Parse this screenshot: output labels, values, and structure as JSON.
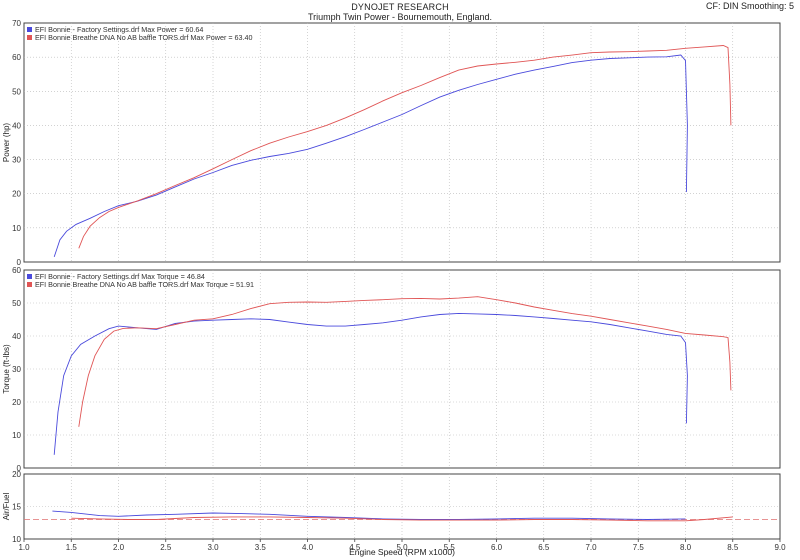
{
  "header": {
    "title": "DYNOJET RESEARCH",
    "subtitle": "Triumph Twin Power - Bournemouth, England.",
    "right_info": "CF: DIN  Smoothing: 5"
  },
  "colors": {
    "series1": "#4a4adc",
    "series2": "#e05555",
    "grid": "#b8b8b8",
    "frame": "#444444",
    "background": "#ffffff"
  },
  "chart_data": [
    {
      "type": "line",
      "ylabel": "Power (hp)",
      "ylim": [
        0,
        70
      ],
      "yticks": [
        0,
        10,
        20,
        30,
        40,
        50,
        60,
        70
      ],
      "xlim": [
        1.0,
        9.0
      ],
      "grid": true,
      "legend_position": "top-left",
      "series": [
        {
          "name": "EFI Bonnie - Factory Settings.drf Max Power = 60.64",
          "color": "#4a4adc",
          "x": [
            1.32,
            1.38,
            1.45,
            1.55,
            1.7,
            1.85,
            2.0,
            2.2,
            2.4,
            2.6,
            2.8,
            3.0,
            3.2,
            3.4,
            3.6,
            3.8,
            4.0,
            4.2,
            4.4,
            4.6,
            4.8,
            5.0,
            5.2,
            5.4,
            5.6,
            5.8,
            6.0,
            6.2,
            6.4,
            6.6,
            6.8,
            7.0,
            7.2,
            7.4,
            7.6,
            7.8,
            7.95,
            8.0,
            8.02,
            8.01
          ],
          "y": [
            1.5,
            6.5,
            9.0,
            11.0,
            12.8,
            14.8,
            16.5,
            17.8,
            19.6,
            22.0,
            24.3,
            26.2,
            28.3,
            29.8,
            30.9,
            31.8,
            33.0,
            34.8,
            36.7,
            38.8,
            41.0,
            43.2,
            45.8,
            48.3,
            50.3,
            52.0,
            53.5,
            55.0,
            56.2,
            57.3,
            58.4,
            59.1,
            59.6,
            59.8,
            60.0,
            60.1,
            60.64,
            59.0,
            40.0,
            20.5
          ]
        },
        {
          "name": "EFI Bonnie Breathe DNA No AB baffle TORS.drf Max Power = 63.40",
          "color": "#e05555",
          "x": [
            1.58,
            1.63,
            1.7,
            1.8,
            1.9,
            2.0,
            2.2,
            2.4,
            2.6,
            2.8,
            3.0,
            3.2,
            3.4,
            3.6,
            3.8,
            4.0,
            4.2,
            4.4,
            4.6,
            4.8,
            5.0,
            5.2,
            5.4,
            5.6,
            5.8,
            6.0,
            6.2,
            6.4,
            6.6,
            6.8,
            7.0,
            7.2,
            7.4,
            7.6,
            7.8,
            8.0,
            8.2,
            8.4,
            8.45,
            8.47,
            8.48
          ],
          "y": [
            4.0,
            7.5,
            10.5,
            13.0,
            14.8,
            16.0,
            17.9,
            20.0,
            22.4,
            24.7,
            27.3,
            30.0,
            32.6,
            34.8,
            36.6,
            38.2,
            40.0,
            42.2,
            44.6,
            47.2,
            49.6,
            51.7,
            54.0,
            56.2,
            57.4,
            58.0,
            58.5,
            59.1,
            60.0,
            60.6,
            61.3,
            61.5,
            61.6,
            61.8,
            62.0,
            62.6,
            63.0,
            63.4,
            62.8,
            52.0,
            40.0
          ]
        }
      ]
    },
    {
      "type": "line",
      "ylabel": "Torque (ft-lbs)",
      "ylim": [
        0,
        60
      ],
      "yticks": [
        0,
        10,
        20,
        30,
        40,
        50,
        60
      ],
      "xlim": [
        1.0,
        9.0
      ],
      "grid": true,
      "legend_position": "top-left",
      "series": [
        {
          "name": "EFI Bonnie - Factory Settings.drf Max Torque = 46.84",
          "color": "#4a4adc",
          "x": [
            1.32,
            1.36,
            1.42,
            1.5,
            1.6,
            1.75,
            1.9,
            2.0,
            2.2,
            2.4,
            2.6,
            2.8,
            3.0,
            3.2,
            3.4,
            3.6,
            3.8,
            4.0,
            4.2,
            4.4,
            4.6,
            4.8,
            5.0,
            5.2,
            5.4,
            5.6,
            5.8,
            6.0,
            6.2,
            6.4,
            6.6,
            6.8,
            7.0,
            7.2,
            7.4,
            7.6,
            7.8,
            7.95,
            8.0,
            8.02,
            8.01
          ],
          "y": [
            4.0,
            17.0,
            28.0,
            34.0,
            37.5,
            40.0,
            42.2,
            43.0,
            42.5,
            42.0,
            43.8,
            44.5,
            44.8,
            45.0,
            45.2,
            45.0,
            44.2,
            43.5,
            43.0,
            43.0,
            43.5,
            44.0,
            44.8,
            45.8,
            46.5,
            46.84,
            46.7,
            46.5,
            46.2,
            45.8,
            45.3,
            44.8,
            44.3,
            43.5,
            42.5,
            41.5,
            40.5,
            40.0,
            38.0,
            28.0,
            13.5
          ]
        },
        {
          "name": "EFI Bonnie Breathe DNA No AB baffle TORS.drf Max Torque = 51.91",
          "color": "#e05555",
          "x": [
            1.58,
            1.62,
            1.68,
            1.75,
            1.85,
            1.95,
            2.05,
            2.2,
            2.4,
            2.6,
            2.8,
            3.0,
            3.2,
            3.4,
            3.6,
            3.8,
            4.0,
            4.2,
            4.4,
            4.6,
            4.8,
            5.0,
            5.2,
            5.4,
            5.6,
            5.8,
            6.0,
            6.2,
            6.4,
            6.6,
            6.8,
            7.0,
            7.2,
            7.4,
            7.6,
            7.8,
            8.0,
            8.2,
            8.4,
            8.45,
            8.47,
            8.48
          ],
          "y": [
            12.5,
            20.0,
            28.0,
            34.0,
            39.0,
            41.5,
            42.3,
            42.5,
            42.2,
            43.5,
            44.8,
            45.2,
            46.5,
            48.3,
            49.8,
            50.2,
            50.3,
            50.2,
            50.5,
            50.8,
            51.0,
            51.3,
            51.4,
            51.2,
            51.5,
            51.91,
            51.0,
            50.0,
            48.8,
            47.8,
            46.8,
            46.0,
            45.0,
            44.0,
            43.0,
            42.0,
            40.8,
            40.3,
            39.8,
            39.5,
            32.0,
            23.5
          ]
        }
      ]
    },
    {
      "type": "line",
      "ylabel": "Air/Fuel",
      "ylim": [
        10,
        20
      ],
      "yticks": [
        10,
        15,
        20
      ],
      "xlim": [
        1.0,
        9.0
      ],
      "xlabel": "Engine Speed (RPM x1000)",
      "xticks": [
        "1.0",
        "1.5",
        "2.0",
        "2.5",
        "3.0",
        "3.5",
        "4.0",
        "4.5",
        "5.0",
        "5.5",
        "6.0",
        "6.5",
        "7.0",
        "7.5",
        "8.0",
        "8.5",
        "9.0"
      ],
      "reference_line": 13.0,
      "grid": true,
      "series": [
        {
          "name": "EFI Bonnie - Factory Settings.drf",
          "color": "#4a4adc",
          "x": [
            1.3,
            1.5,
            1.8,
            2.0,
            2.3,
            2.6,
            3.0,
            3.3,
            3.6,
            4.0,
            4.4,
            4.8,
            5.2,
            5.6,
            6.0,
            6.4,
            6.8,
            7.2,
            7.6,
            8.0
          ],
          "y": [
            14.3,
            14.1,
            13.6,
            13.5,
            13.7,
            13.8,
            14.0,
            13.9,
            13.8,
            13.5,
            13.3,
            13.1,
            13.0,
            13.0,
            13.1,
            13.2,
            13.2,
            13.1,
            13.0,
            13.1
          ]
        },
        {
          "name": "EFI Bonnie Breathe DNA No AB baffle TORS.drf",
          "color": "#e05555",
          "x": [
            1.5,
            1.8,
            2.1,
            2.4,
            2.8,
            3.2,
            3.6,
            4.0,
            4.4,
            4.8,
            5.2,
            5.6,
            6.0,
            6.4,
            6.8,
            7.2,
            7.6,
            8.0,
            8.2,
            8.5
          ],
          "y": [
            13.2,
            13.1,
            13.0,
            13.0,
            13.3,
            13.4,
            13.4,
            13.3,
            13.2,
            13.0,
            12.9,
            12.9,
            12.9,
            13.0,
            13.0,
            12.9,
            12.8,
            12.8,
            13.0,
            13.4
          ]
        }
      ]
    }
  ]
}
